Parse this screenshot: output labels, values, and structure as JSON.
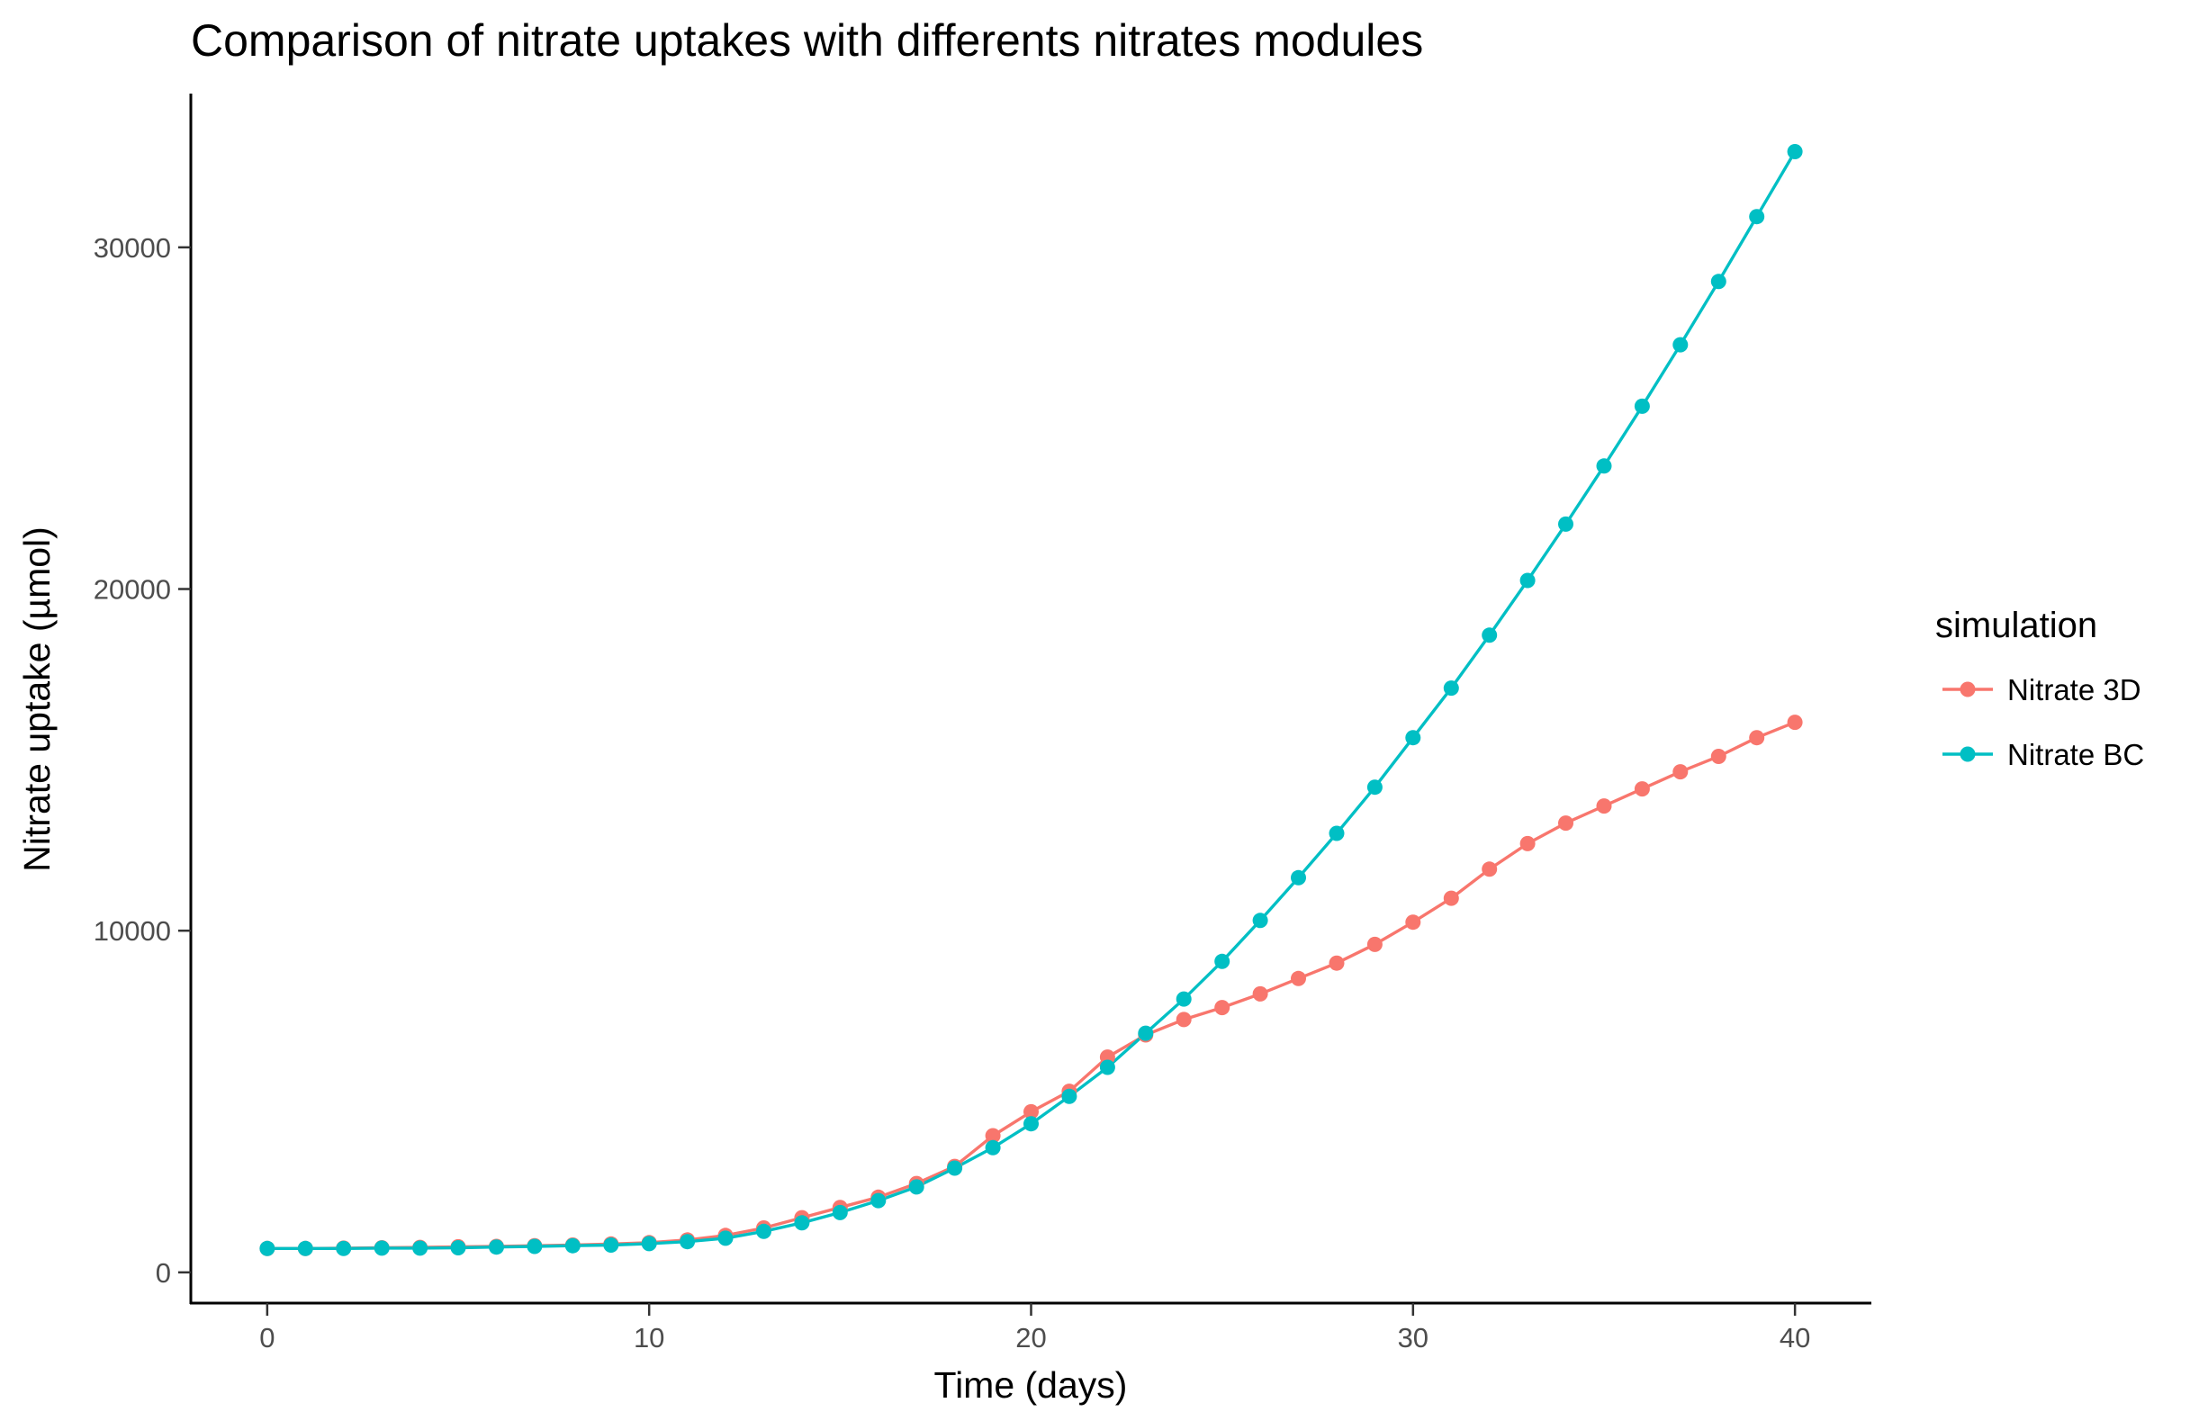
{
  "chart_data": {
    "type": "line",
    "title": "Comparison of nitrate uptakes with differents nitrates modules",
    "xlabel": "Time (days)",
    "ylabel": "Nitrate uptake (µmol)",
    "xlim": [
      -2,
      42
    ],
    "ylim": [
      -900,
      34500
    ],
    "xticks": [
      0,
      10,
      20,
      30,
      40
    ],
    "xtick_labels": [
      "0",
      "10",
      "20",
      "30",
      "40"
    ],
    "yticks": [
      0,
      10000,
      20000,
      30000
    ],
    "ytick_labels": [
      "0",
      "10000",
      "20000",
      "30000"
    ],
    "grid": false,
    "legend": {
      "title": "simulation",
      "position": "right"
    },
    "x": [
      0,
      1,
      2,
      3,
      4,
      5,
      6,
      7,
      8,
      9,
      10,
      11,
      12,
      13,
      14,
      15,
      16,
      17,
      18,
      19,
      20,
      21,
      22,
      23,
      24,
      25,
      26,
      27,
      28,
      29,
      30,
      31,
      32,
      33,
      34,
      35,
      36,
      37,
      38,
      39,
      40
    ],
    "series": [
      {
        "name": "Nitrate 3D",
        "color": "#F8766D",
        "values": [
          700,
          700,
          710,
          720,
          730,
          750,
          760,
          780,
          800,
          830,
          870,
          950,
          1080,
          1300,
          1600,
          1900,
          2200,
          2600,
          3100,
          4000,
          4700,
          5300,
          6300,
          6950,
          7400,
          7750,
          8150,
          8600,
          9050,
          9600,
          10250,
          10950,
          11800,
          12550,
          13150,
          13650,
          14150,
          14650,
          15100,
          15650,
          16100
        ]
      },
      {
        "name": "Nitrate BC",
        "color": "#00BFC4",
        "values": [
          700,
          700,
          700,
          710,
          710,
          720,
          740,
          760,
          780,
          800,
          840,
          900,
          1000,
          1200,
          1450,
          1750,
          2100,
          2500,
          3050,
          3650,
          4350,
          5150,
          6000,
          7000,
          8000,
          9100,
          10300,
          11550,
          12850,
          14200,
          15650,
          17100,
          18650,
          20250,
          21900,
          23600,
          25350,
          27150,
          29000,
          30900,
          32800
        ]
      }
    ]
  }
}
